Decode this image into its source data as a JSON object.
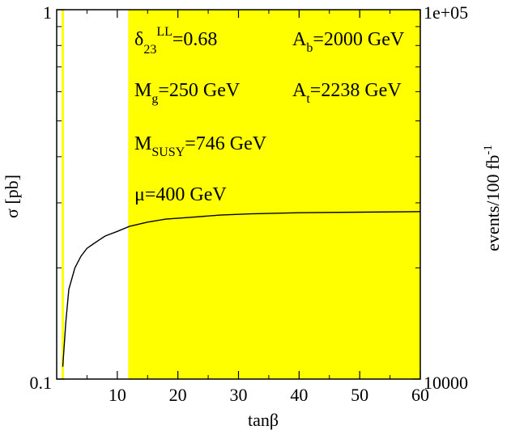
{
  "chart_data": {
    "type": "line",
    "xlabel_base": "tan",
    "xlabel_greek": "β",
    "ylabel_greek": "σ",
    "ylabel_unit": " [pb]",
    "y2label_main": "events/100 fb",
    "y2label_exp": "-1",
    "xlim": [
      0,
      60
    ],
    "ylim": [
      0.1,
      1
    ],
    "yscale": "log",
    "y2lim": [
      10000,
      100000
    ],
    "xticks": [
      10,
      20,
      30,
      40,
      50,
      60
    ],
    "xtick_labels": [
      "10",
      "20",
      "30",
      "40",
      "50",
      "60"
    ],
    "ytick_labels": {
      "top": "1",
      "bottom": "0.1"
    },
    "y2tick_labels": {
      "top": "1e+05",
      "bottom": "10000"
    },
    "shaded_regions": [
      {
        "x": [
          0.8,
          1.2
        ],
        "color": "#ffff00"
      },
      {
        "x": [
          11.8,
          60
        ],
        "color": "#ffff00"
      }
    ],
    "series": [
      {
        "x": [
          1,
          1.5,
          2,
          3,
          4,
          5,
          6,
          7,
          8,
          10,
          12,
          15,
          18,
          22,
          27,
          32,
          40,
          50,
          60
        ],
        "y": [
          0.108,
          0.142,
          0.175,
          0.2,
          0.215,
          0.226,
          0.232,
          0.238,
          0.244,
          0.251,
          0.259,
          0.266,
          0.271,
          0.274,
          0.278,
          0.28,
          0.282,
          0.283,
          0.284
        ],
        "color": "#000000"
      }
    ],
    "annotations": {
      "delta": {
        "base": "δ",
        "sub": "23",
        "sup": "LL",
        "value": "=0.68"
      },
      "ab": {
        "base": "A",
        "sub": "b",
        "value": "=2000 GeV"
      },
      "mg": {
        "base": "M",
        "sub": "g",
        "value": "=250 GeV"
      },
      "at": {
        "base": "A",
        "sub": "t",
        "value": "=2238 GeV"
      },
      "msusy": {
        "base": "M",
        "sub": "SUSY",
        "value": "=746 GeV"
      },
      "mu": {
        "base": "μ",
        "value": "=400 GeV"
      }
    }
  }
}
